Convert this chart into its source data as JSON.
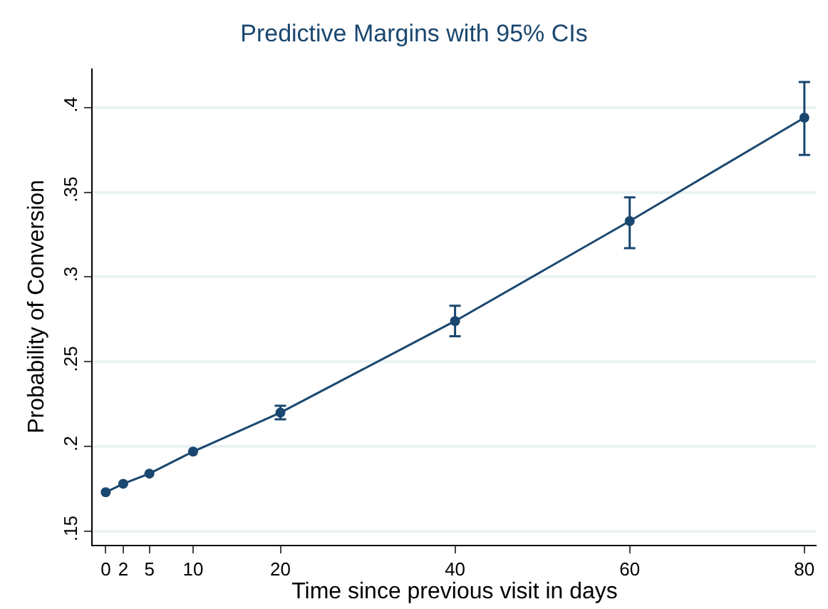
{
  "chart_data": {
    "type": "line",
    "title": "Predictive Margins with 95% CIs",
    "xlabel": "Time since previous visit in days",
    "ylabel": "Probability of Conversion",
    "x": [
      0,
      2,
      5,
      10,
      20,
      40,
      60,
      80
    ],
    "series": [
      {
        "color": "#1a476f",
        "values": [
          0.173,
          0.178,
          0.184,
          0.197,
          0.22,
          0.274,
          0.333,
          0.394
        ],
        "errors": [
          null,
          null,
          null,
          null,
          [
            0.216,
            0.224
          ],
          [
            0.265,
            0.283
          ],
          [
            0.317,
            0.347
          ],
          [
            0.372,
            0.415
          ]
        ]
      }
    ],
    "xlim": [
      -1.5,
      81.4
    ],
    "xticks": [
      0,
      2,
      5,
      10,
      20,
      40,
      60,
      80
    ],
    "ylim": [
      0.142,
      0.423
    ],
    "yticks": [
      {
        "value": 0.15,
        "label": ".15"
      },
      {
        "value": 0.2,
        "label": ".2"
      },
      {
        "value": 0.25,
        "label": ".25"
      },
      {
        "value": 0.3,
        "label": ".3"
      },
      {
        "value": 0.35,
        "label": ".35"
      },
      {
        "value": 0.4,
        "label": ".4"
      }
    ],
    "grid": "y",
    "marker": "circle",
    "line_style": "solid"
  }
}
